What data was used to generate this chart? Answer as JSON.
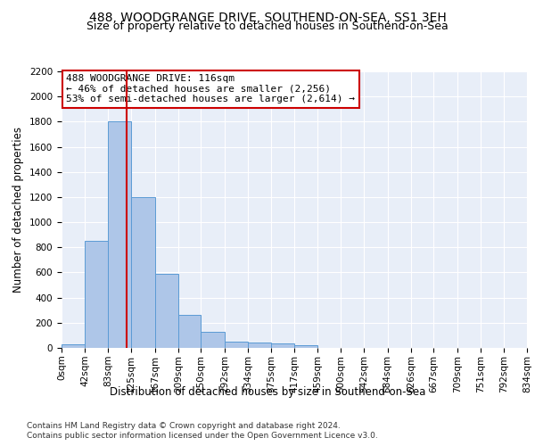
{
  "title": "488, WOODGRANGE DRIVE, SOUTHEND-ON-SEA, SS1 3EH",
  "subtitle": "Size of property relative to detached houses in Southend-on-Sea",
  "xlabel": "Distribution of detached houses by size in Southend-on-Sea",
  "ylabel": "Number of detached properties",
  "footnote1": "Contains HM Land Registry data © Crown copyright and database right 2024.",
  "footnote2": "Contains public sector information licensed under the Open Government Licence v3.0.",
  "annotation_line1": "488 WOODGRANGE DRIVE: 116sqm",
  "annotation_line2": "← 46% of detached houses are smaller (2,256)",
  "annotation_line3": "53% of semi-detached houses are larger (2,614) →",
  "bar_edges": [
    0,
    42,
    83,
    125,
    167,
    209,
    250,
    292,
    334,
    375,
    417,
    459,
    500,
    542,
    584,
    626,
    667,
    709,
    751,
    792,
    834
  ],
  "bar_heights": [
    25,
    850,
    1800,
    1200,
    590,
    260,
    130,
    50,
    45,
    32,
    20,
    0,
    0,
    0,
    0,
    0,
    0,
    0,
    0,
    0
  ],
  "bar_color": "#aec6e8",
  "bar_edgecolor": "#5b9bd5",
  "vline_x": 116,
  "vline_color": "#cc0000",
  "annotation_box_color": "#cc0000",
  "background_color": "#e8eef8",
  "ylim": [
    0,
    2200
  ],
  "yticks": [
    0,
    200,
    400,
    600,
    800,
    1000,
    1200,
    1400,
    1600,
    1800,
    2000,
    2200
  ],
  "title_fontsize": 10,
  "subtitle_fontsize": 9,
  "axis_label_fontsize": 8.5,
  "tick_fontsize": 7.5,
  "annotation_fontsize": 8,
  "footnote_fontsize": 6.5
}
